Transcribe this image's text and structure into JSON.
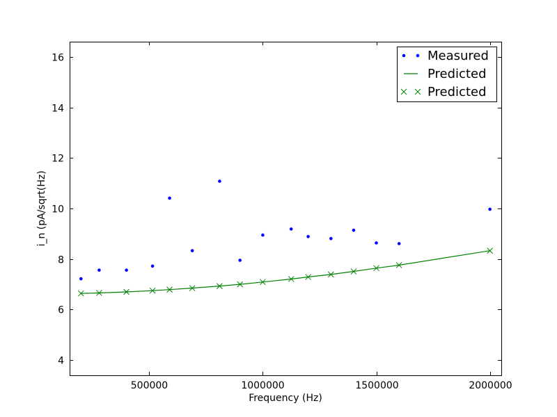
{
  "chart_data": {
    "type": "scatter",
    "title": "",
    "xlabel": "Frequency (Hz)",
    "ylabel": "i_n (pA/sqrt(Hz)",
    "xlim": [
      150000,
      2050000
    ],
    "ylim": [
      3.4,
      16.6
    ],
    "xticks": [
      500000,
      1000000,
      1500000,
      2000000
    ],
    "xtick_labels": [
      "500000",
      "1000000",
      "1500000",
      "2000000"
    ],
    "yticks": [
      4,
      6,
      8,
      10,
      12,
      14,
      16
    ],
    "ytick_labels": [
      "4",
      "6",
      "8",
      "10",
      "12",
      "14",
      "16"
    ],
    "grid": false,
    "legend_position": "top-right",
    "series": [
      {
        "name": "Measured",
        "style": "points",
        "color": "#0000ff",
        "x": [
          200000,
          280000,
          400000,
          515000,
          590000,
          690000,
          810000,
          900000,
          1000000,
          1125000,
          1200000,
          1300000,
          1400000,
          1500000,
          1600000,
          2000000
        ],
        "y": [
          7.22,
          7.56,
          7.56,
          7.72,
          10.41,
          8.33,
          11.08,
          7.95,
          8.95,
          9.19,
          8.89,
          8.81,
          9.14,
          8.64,
          8.61,
          9.97
        ]
      },
      {
        "name": "Predicted",
        "style": "line",
        "color": "#008000",
        "x": [
          200000,
          280000,
          400000,
          515000,
          590000,
          690000,
          810000,
          900000,
          1000000,
          1125000,
          1200000,
          1300000,
          1400000,
          1500000,
          1600000,
          2000000
        ],
        "y": [
          6.64,
          6.66,
          6.7,
          6.75,
          6.79,
          6.85,
          6.93,
          7.0,
          7.09,
          7.21,
          7.29,
          7.39,
          7.51,
          7.64,
          7.76,
          8.33
        ]
      },
      {
        "name": "Predicted",
        "style": "x-markers",
        "color": "#008000",
        "x": [
          200000,
          280000,
          400000,
          515000,
          590000,
          690000,
          810000,
          900000,
          1000000,
          1125000,
          1200000,
          1300000,
          1400000,
          1500000,
          1600000,
          2000000
        ],
        "y": [
          6.64,
          6.66,
          6.7,
          6.75,
          6.79,
          6.85,
          6.93,
          7.0,
          7.09,
          7.21,
          7.29,
          7.39,
          7.51,
          7.64,
          7.76,
          8.33
        ]
      }
    ]
  }
}
